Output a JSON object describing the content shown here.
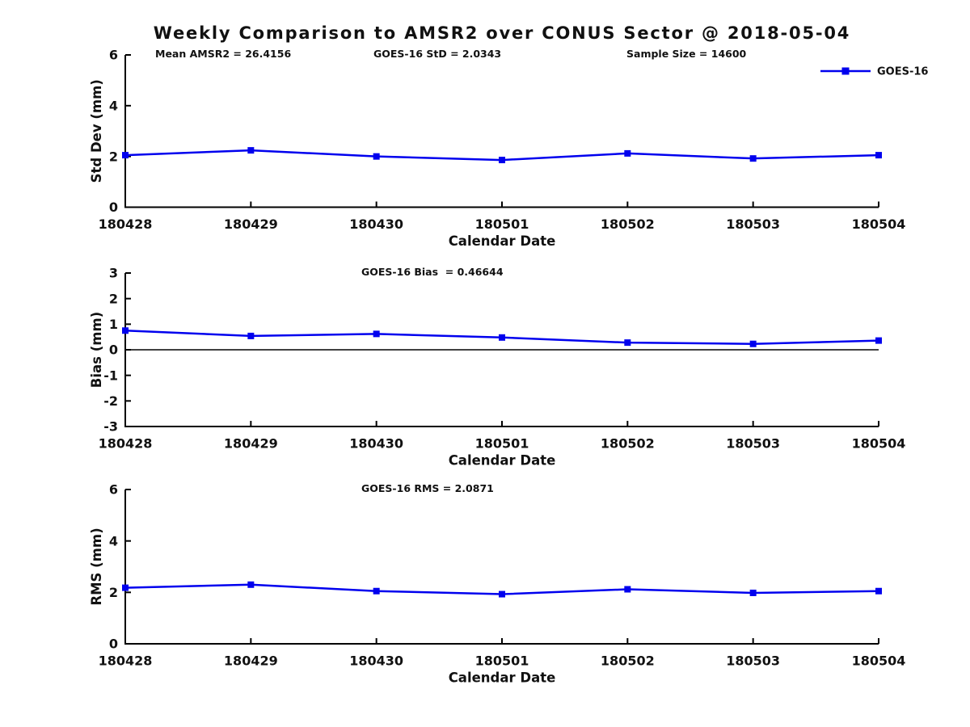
{
  "figure": {
    "title": "Weekly Comparison to AMSR2 over CONUS Sector @ 2018-05-04",
    "series_color": "#0000ee",
    "axis_color": "#000000",
    "background": "#ffffff"
  },
  "chart_data": [
    {
      "type": "line",
      "panel": "std-dev",
      "categories": [
        "180428",
        "180429",
        "180430",
        "180501",
        "180502",
        "180503",
        "180504"
      ],
      "series": [
        {
          "name": "GOES-16",
          "values": [
            2.05,
            2.24,
            2.0,
            1.86,
            2.12,
            1.92,
            2.05
          ]
        }
      ],
      "xlabel": "Calendar Date",
      "ylabel": "Std Dev (mm)",
      "ylim": [
        0,
        6
      ],
      "yticks": [
        0,
        2,
        4,
        6
      ],
      "grid": false,
      "marker": "square",
      "annotations": [
        "Mean AMSR2 = 26.4156",
        "GOES-16 StD = 2.0343",
        "Sample Size = 14600"
      ],
      "legend": {
        "label": "GOES-16",
        "position": "top-right"
      }
    },
    {
      "type": "line",
      "panel": "bias",
      "categories": [
        "180428",
        "180429",
        "180430",
        "180501",
        "180502",
        "180503",
        "180504"
      ],
      "series": [
        {
          "name": "GOES-16",
          "values": [
            0.75,
            0.54,
            0.62,
            0.48,
            0.28,
            0.23,
            0.36
          ]
        }
      ],
      "xlabel": "Calendar Date",
      "ylabel": "Bias (mm)",
      "ylim": [
        -3,
        3
      ],
      "yticks": [
        -3,
        -2,
        -1,
        0,
        1,
        2,
        3
      ],
      "grid": false,
      "marker": "square",
      "zero_line": true,
      "annotations": [
        "GOES-16 Bias  = 0.46644"
      ]
    },
    {
      "type": "line",
      "panel": "rms",
      "categories": [
        "180428",
        "180429",
        "180430",
        "180501",
        "180502",
        "180503",
        "180504"
      ],
      "series": [
        {
          "name": "GOES-16",
          "values": [
            2.18,
            2.3,
            2.05,
            1.93,
            2.12,
            1.98,
            2.05
          ]
        }
      ],
      "xlabel": "Calendar Date",
      "ylabel": "RMS (mm)",
      "ylim": [
        0,
        6
      ],
      "yticks": [
        0,
        2,
        4,
        6
      ],
      "grid": false,
      "marker": "square",
      "annotations": [
        "GOES-16 RMS = 2.0871"
      ]
    }
  ]
}
